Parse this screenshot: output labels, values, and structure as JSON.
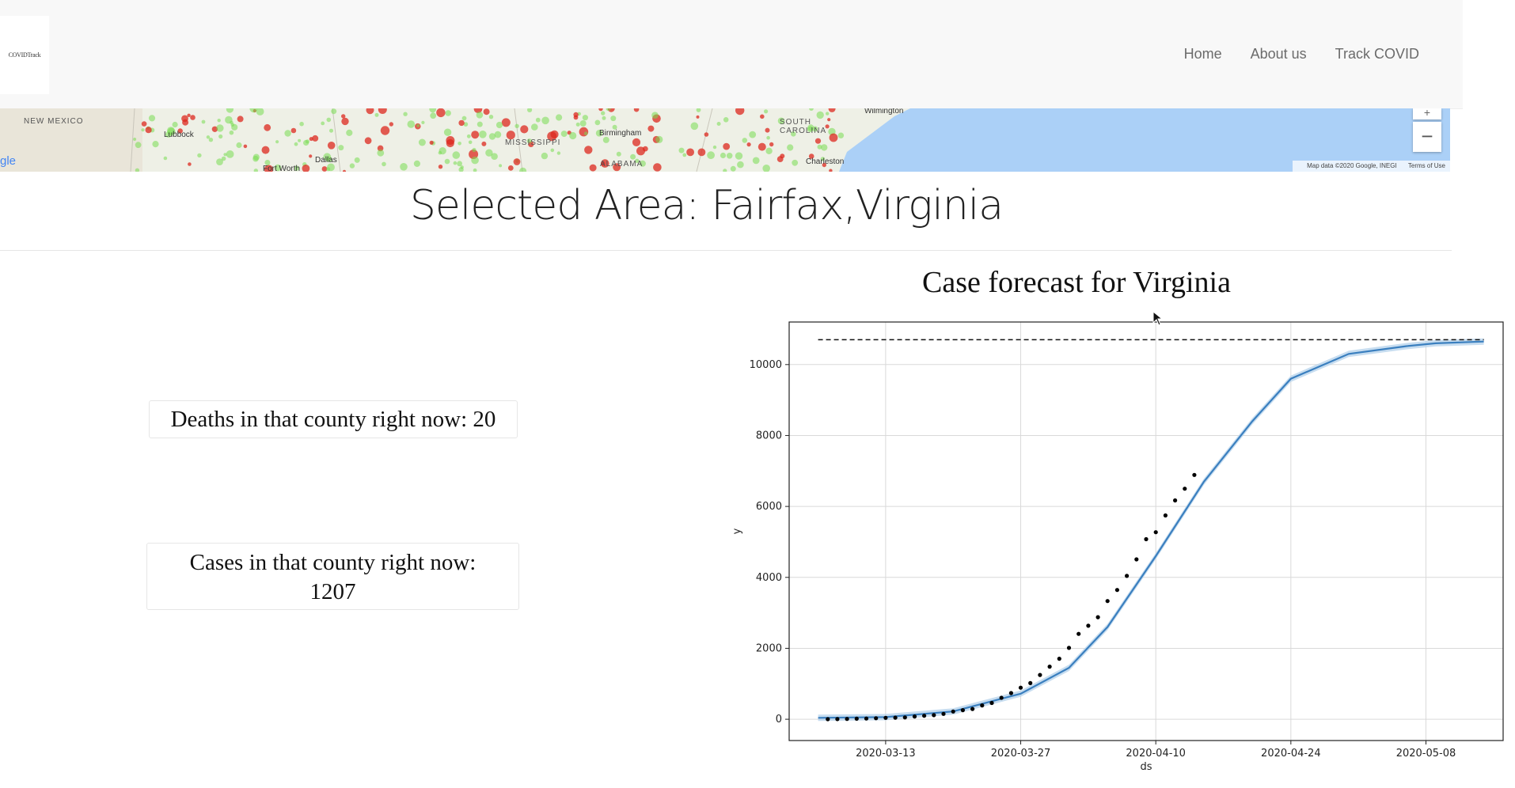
{
  "navbar": {
    "logo_text": "COVIDTrack",
    "links": [
      "Home",
      "About us",
      "Track COVID"
    ]
  },
  "map": {
    "state_labels": [
      "NEW MEXICO",
      "MISSISSIPPI",
      "ALABAMA",
      "SOUTH CAROLINA"
    ],
    "city_labels": [
      "Lubbock",
      "Dallas",
      "Fort Worth",
      "Birmingham",
      "Wilmington",
      "Charleston"
    ],
    "zoom_in_symbol": "+",
    "zoom_out_symbol": "−",
    "attribution": "Map data ©2020 Google, INEGI",
    "terms": "Terms of Use",
    "google_logo_fragment": "gle"
  },
  "selected_area": "Selected Area: Fairfax,Virginia",
  "deaths": {
    "label": "Deaths in that county right now: 20"
  },
  "cases": {
    "label_line1": "Cases in that county right now:",
    "label_line2": "1207"
  },
  "chart_title": "Case forecast for Virginia",
  "colors": {
    "forecast_line": "#3a7fbf",
    "uncertainty_band": "#b9d4ec",
    "points": "#000000",
    "water": "#abd0f7"
  },
  "chart_data": {
    "type": "line",
    "title": "Case forecast for Virginia",
    "xlabel": "ds",
    "ylabel": "y",
    "xlim": [
      "2020-03-03",
      "2020-05-16"
    ],
    "ylim": [
      -600,
      11200
    ],
    "x_ticks": [
      "2020-03-13",
      "2020-03-27",
      "2020-04-10",
      "2020-04-24",
      "2020-05-08"
    ],
    "y_ticks": [
      0,
      2000,
      4000,
      6000,
      8000,
      10000
    ],
    "grid": true,
    "cap": 10700,
    "series": [
      {
        "role": "observed",
        "x": [
          "2020-03-07",
          "2020-03-08",
          "2020-03-09",
          "2020-03-10",
          "2020-03-11",
          "2020-03-12",
          "2020-03-13",
          "2020-03-14",
          "2020-03-15",
          "2020-03-16",
          "2020-03-17",
          "2020-03-18",
          "2020-03-19",
          "2020-03-20",
          "2020-03-21",
          "2020-03-22",
          "2020-03-23",
          "2020-03-24",
          "2020-03-25",
          "2020-03-26",
          "2020-03-27",
          "2020-03-28",
          "2020-03-29",
          "2020-03-30",
          "2020-03-31",
          "2020-04-01",
          "2020-04-02",
          "2020-04-03",
          "2020-04-04",
          "2020-04-05",
          "2020-04-06",
          "2020-04-07",
          "2020-04-08",
          "2020-04-09",
          "2020-04-10",
          "2020-04-11",
          "2020-04-12",
          "2020-04-13",
          "2020-04-14"
        ],
        "y": [
          2,
          5,
          10,
          15,
          20,
          30,
          41,
          45,
          51,
          77,
          99,
          116,
          152,
          219,
          256,
          290,
          391,
          460,
          604,
          739,
          890,
          1020,
          1250,
          1484,
          1706,
          2012,
          2407,
          2637,
          2878,
          3333,
          3645,
          4042,
          4509,
          5077,
          5274,
          5747,
          6171,
          6500,
          6889
        ]
      },
      {
        "role": "forecast",
        "x": [
          "2020-03-06",
          "2020-03-13",
          "2020-03-20",
          "2020-03-27",
          "2020-04-01",
          "2020-04-05",
          "2020-04-10",
          "2020-04-15",
          "2020-04-20",
          "2020-04-24",
          "2020-04-30",
          "2020-05-06",
          "2020-05-09",
          "2020-05-14"
        ],
        "y": [
          40,
          60,
          220,
          720,
          1450,
          2600,
          4600,
          6700,
          8400,
          9600,
          10300,
          10520,
          10600,
          10650
        ]
      }
    ]
  }
}
